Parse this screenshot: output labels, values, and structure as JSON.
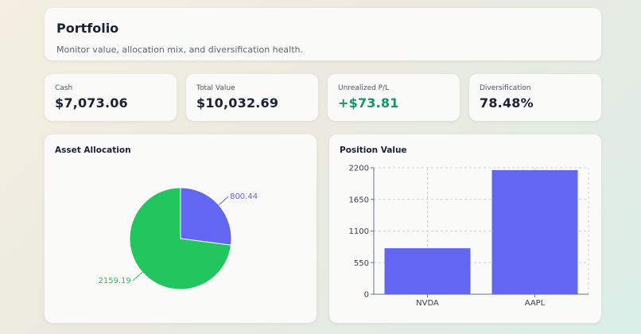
{
  "header": {
    "title": "Portfolio",
    "subtitle": "Monitor value, allocation mix, and diversification health."
  },
  "stats": [
    {
      "label": "Cash",
      "value": "$7,073.06"
    },
    {
      "label": "Total Value",
      "value": "$10,032.69"
    },
    {
      "label": "Unrealized P/L",
      "value": "+$73.81",
      "color": "#15966a"
    },
    {
      "label": "Diversification",
      "value": "78.48%"
    }
  ],
  "allocation": {
    "title": "Asset Allocation"
  },
  "position": {
    "title": "Position Value"
  },
  "chart_data": [
    {
      "type": "pie",
      "title": "Asset Allocation",
      "values": [
        800.44,
        2159.19
      ],
      "labels": [
        "800.44",
        "2159.19"
      ],
      "colors": [
        "#6366f1",
        "#22c55e"
      ]
    },
    {
      "type": "bar",
      "title": "Position Value",
      "categories": [
        "NVDA",
        "AAPL"
      ],
      "values": [
        800.44,
        2159.19
      ],
      "ylim": [
        0,
        2200
      ],
      "yticks": [
        0,
        550,
        1100,
        1650,
        2200
      ],
      "grid": true,
      "colors": [
        "#6366f1"
      ]
    }
  ]
}
